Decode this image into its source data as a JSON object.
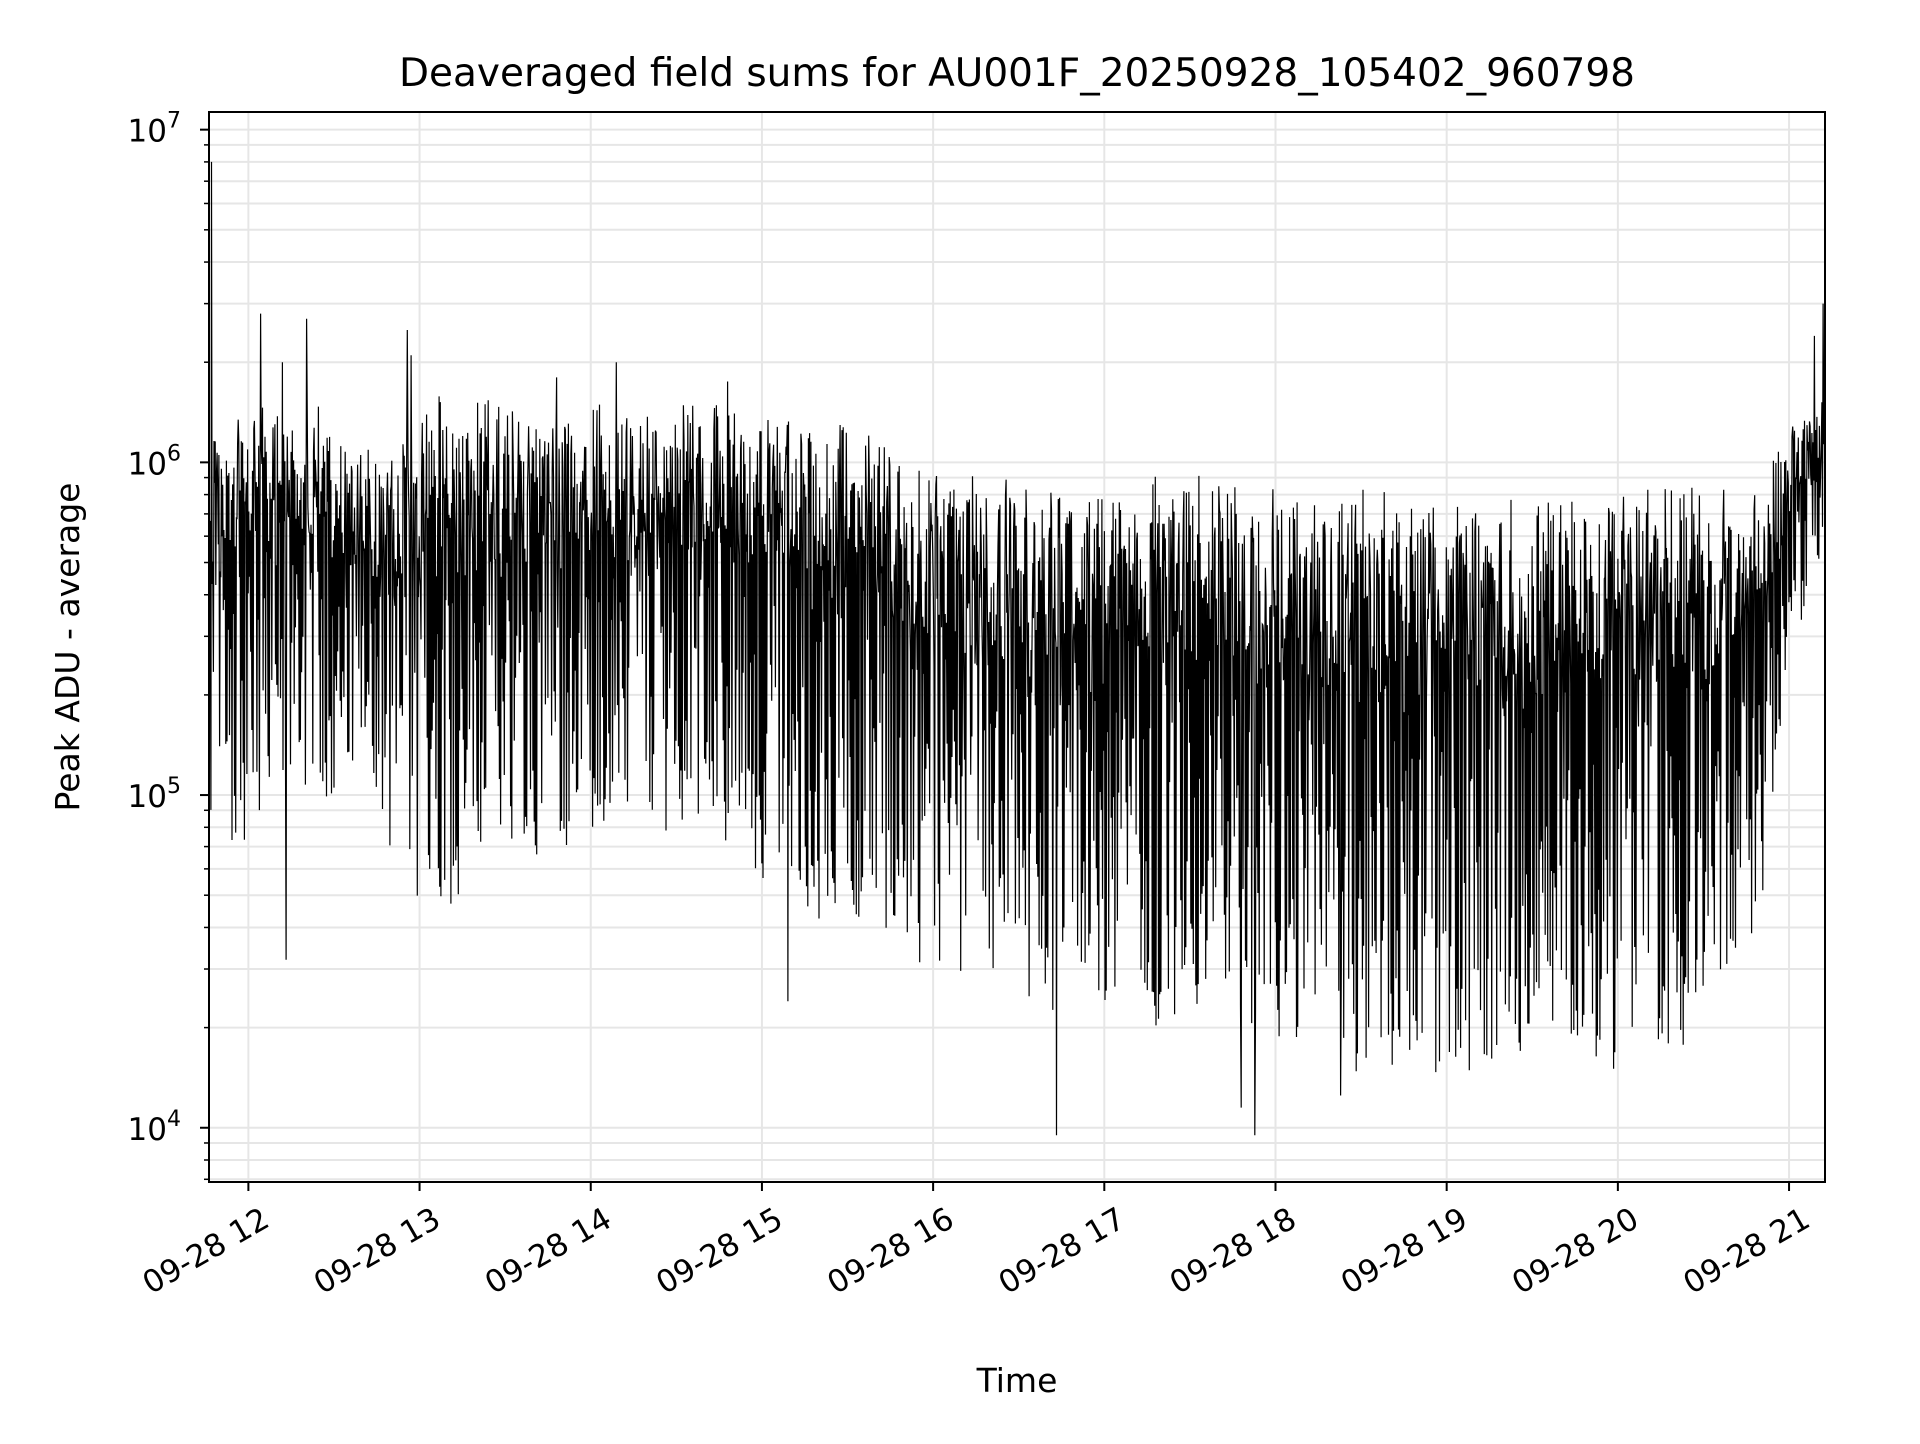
{
  "chart_data": {
    "type": "line",
    "title": "Deaveraged field sums for AU001F_20250928_105402_960798",
    "xlabel": "Time",
    "ylabel": "Peak ADU - average",
    "yscale": "log",
    "ylim": [
      6870,
      11300000
    ],
    "xlim_hours": [
      11.77,
      21.21
    ],
    "x_ticks": [
      {
        "hour": 12,
        "label": "09-28 12"
      },
      {
        "hour": 13,
        "label": "09-28 13"
      },
      {
        "hour": 14,
        "label": "09-28 14"
      },
      {
        "hour": 15,
        "label": "09-28 15"
      },
      {
        "hour": 16,
        "label": "09-28 16"
      },
      {
        "hour": 17,
        "label": "09-28 17"
      },
      {
        "hour": 18,
        "label": "09-28 18"
      },
      {
        "hour": 19,
        "label": "09-28 19"
      },
      {
        "hour": 20,
        "label": "09-28 20"
      },
      {
        "hour": 21,
        "label": "09-28 21"
      }
    ],
    "y_ticks": [
      {
        "value": 10000,
        "base": "10",
        "exp": "4"
      },
      {
        "value": 100000,
        "base": "10",
        "exp": "5"
      },
      {
        "value": 1000000,
        "base": "10",
        "exp": "6"
      },
      {
        "value": 10000000,
        "base": "10",
        "exp": "7"
      }
    ],
    "grid": true,
    "series_color": "#000000",
    "envelope": {
      "columns": [
        "hour",
        "upper",
        "lower"
      ],
      "bins": [
        [
          11.77,
          1300000,
          60000
        ],
        [
          12.0,
          1400000,
          80000
        ],
        [
          12.25,
          1400000,
          120000
        ],
        [
          12.5,
          1300000,
          110000
        ],
        [
          12.75,
          1000000,
          90000
        ],
        [
          13.0,
          1400000,
          50000
        ],
        [
          13.25,
          1450000,
          55000
        ],
        [
          13.5,
          1400000,
          70000
        ],
        [
          13.75,
          1450000,
          70000
        ],
        [
          14.0,
          1350000,
          90000
        ],
        [
          14.25,
          1350000,
          100000
        ],
        [
          14.5,
          1400000,
          90000
        ],
        [
          14.75,
          1450000,
          80000
        ],
        [
          15.0,
          1350000,
          60000
        ],
        [
          15.25,
          1300000,
          50000
        ],
        [
          15.5,
          1250000,
          45000
        ],
        [
          15.75,
          1100000,
          40000
        ],
        [
          16.0,
          850000,
          30000
        ],
        [
          16.5,
          800000,
          25000
        ],
        [
          17.0,
          800000,
          22000
        ],
        [
          17.5,
          850000,
          22000
        ],
        [
          18.0,
          750000,
          20000
        ],
        [
          18.5,
          800000,
          16000
        ],
        [
          19.0,
          700000,
          16000
        ],
        [
          19.5,
          750000,
          17000
        ],
        [
          20.0,
          800000,
          17000
        ],
        [
          20.5,
          780000,
          20000
        ],
        [
          20.85,
          850000,
          50000
        ],
        [
          21.0,
          1200000,
          300000
        ],
        [
          21.21,
          1600000,
          500000
        ]
      ],
      "spikes": [
        [
          11.785,
          8000000
        ],
        [
          12.07,
          2800000
        ],
        [
          12.2,
          2000000
        ],
        [
          12.34,
          2700000
        ],
        [
          12.93,
          2500000
        ],
        [
          12.95,
          2100000
        ],
        [
          13.8,
          1800000
        ],
        [
          14.15,
          2000000
        ],
        [
          14.8,
          1750000
        ],
        [
          21.15,
          2400000
        ],
        [
          21.2,
          3000000
        ],
        [
          12.22,
          32000
        ],
        [
          15.15,
          24000
        ],
        [
          16.72,
          9500
        ],
        [
          17.88,
          9500
        ],
        [
          17.8,
          11500
        ],
        [
          18.38,
          12500
        ]
      ],
      "approx_points": 2600
    }
  }
}
